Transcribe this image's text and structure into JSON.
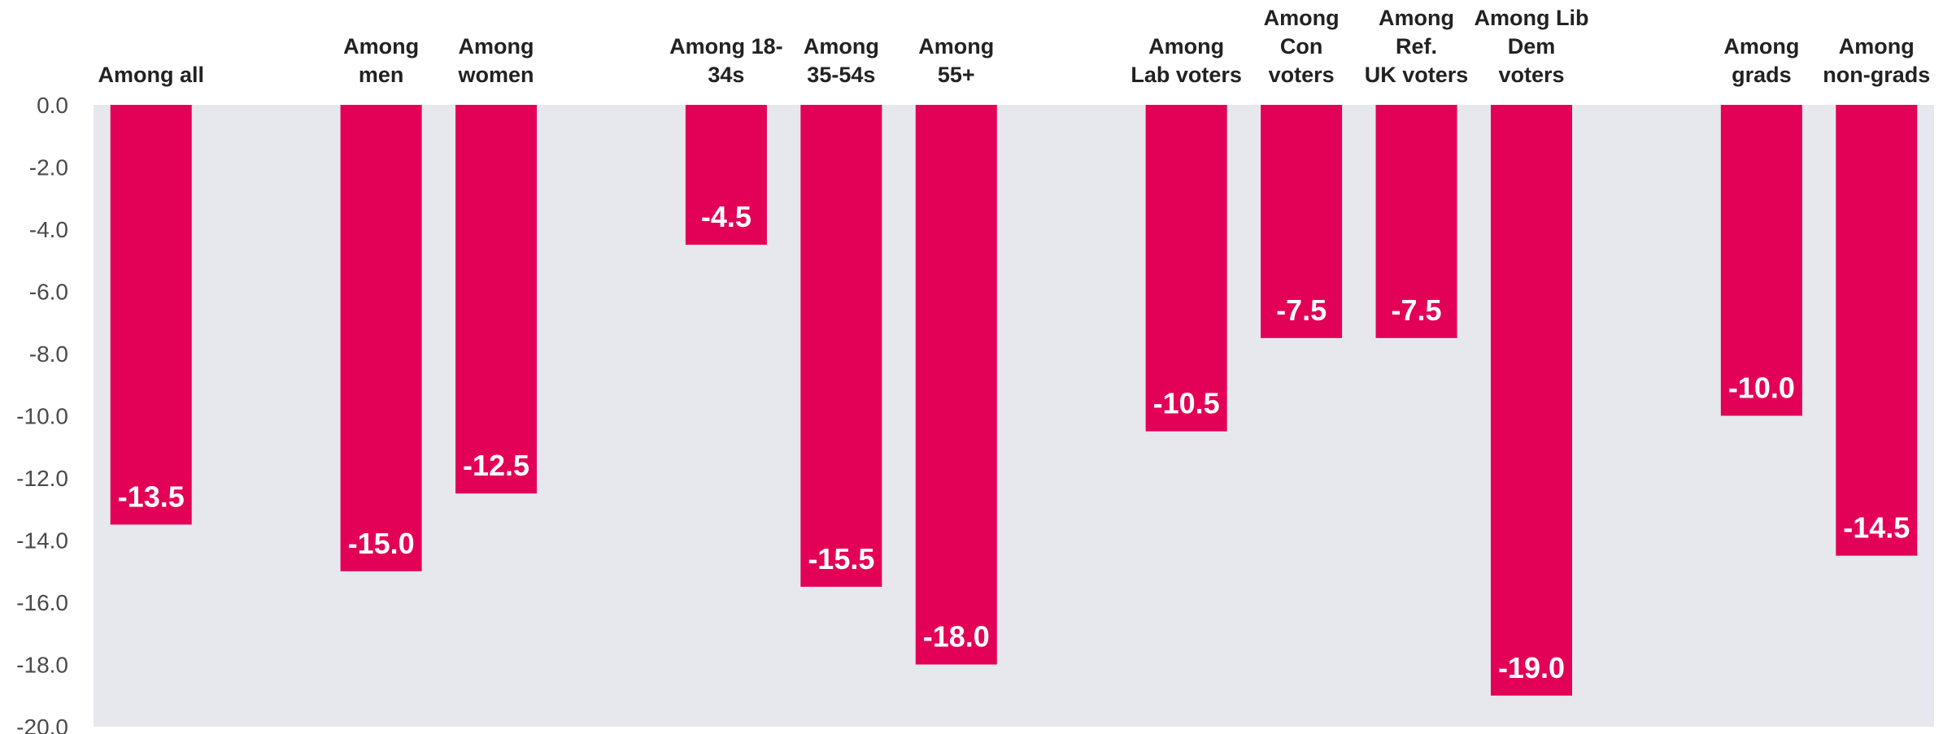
{
  "chart_data": {
    "type": "bar",
    "categories": [
      [
        "Among all"
      ],
      [],
      [
        "Among",
        "men"
      ],
      [
        "Among",
        "women"
      ],
      [],
      [
        "Among 18-",
        "34s"
      ],
      [
        "Among",
        "35-54s"
      ],
      [
        "Among",
        "55+"
      ],
      [],
      [
        "Among",
        "Lab voters"
      ],
      [
        "Among",
        "Con",
        "voters"
      ],
      [
        "Among",
        "Ref.",
        "UK voters"
      ],
      [
        "Among Lib",
        "Dem",
        "voters"
      ],
      [],
      [
        "Among",
        "grads"
      ],
      [
        "Among",
        "non-grads"
      ]
    ],
    "values": [
      -13.5,
      null,
      -15.0,
      -12.5,
      null,
      -4.5,
      -15.5,
      -18.0,
      null,
      -10.5,
      -7.5,
      -7.5,
      -19.0,
      null,
      -10.0,
      -14.5
    ],
    "value_labels": [
      "-13.5",
      "",
      "-15.0",
      "-12.5",
      "",
      "-4.5",
      "-15.5",
      "-18.0",
      "",
      "-10.5",
      "-7.5",
      "-7.5",
      "-19.0",
      "",
      "-10.0",
      "-14.5"
    ],
    "y_ticks": [
      "0.0",
      "-2.0",
      "-4.0",
      "-6.0",
      "-8.0",
      "-10.0",
      "-12.0",
      "-14.0",
      "-16.0",
      "-18.0",
      "-20.0"
    ],
    "ylim": [
      -20,
      0
    ],
    "title": "",
    "xlabel": "",
    "ylabel": "",
    "grid": false,
    "legend": "none",
    "colors": {
      "bar": "#e30057",
      "plot_background": "#e6e8ee",
      "data_label": "#ffffff",
      "category_label": "#222222",
      "tick_label": "#4a4a4a"
    }
  }
}
